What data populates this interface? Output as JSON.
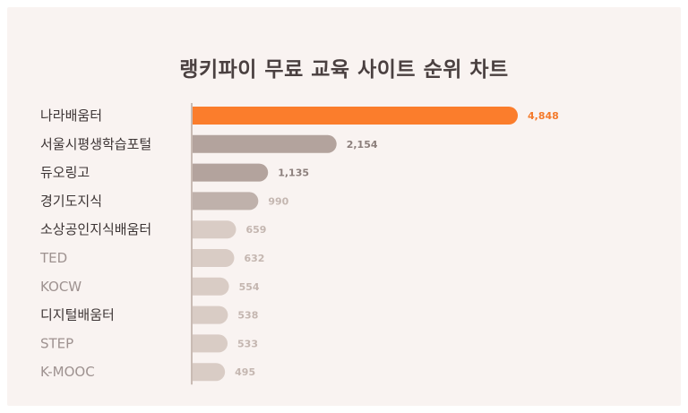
{
  "chart_data": {
    "type": "bar",
    "orientation": "horizontal",
    "title": "랭키파이 무료 교육 사이트 순위 차트",
    "categories": [
      "나라배움터",
      "서울시평생학습포털",
      "듀오링고",
      "경기도지식",
      "소상공인지식배움터",
      "TED",
      "KOCW",
      "디지털배움터",
      "STEP",
      "K-MOOC"
    ],
    "values": [
      4848,
      2154,
      1135,
      990,
      659,
      632,
      554,
      538,
      533,
      495
    ],
    "value_labels": [
      "4,848",
      "2,154",
      "1,135",
      "990",
      "659",
      "632",
      "554",
      "538",
      "533",
      "495"
    ],
    "xlim": [
      0,
      4848
    ],
    "grid": false,
    "legend": "none"
  },
  "colors": {
    "background": "#f9f3f1",
    "highlight_bar": "#fb7d2c",
    "bar_dark": "#b3a39d",
    "bar_mid": "#bfb1ab",
    "bar_light": "#d9ccc5",
    "axis": "#c9bbb4",
    "label_dark": "#3d3535",
    "label_muted": "#9e9290",
    "value_highlight": "#f47a2b",
    "value_dark": "#8c7f7c",
    "value_light": "#c4b6b0"
  }
}
